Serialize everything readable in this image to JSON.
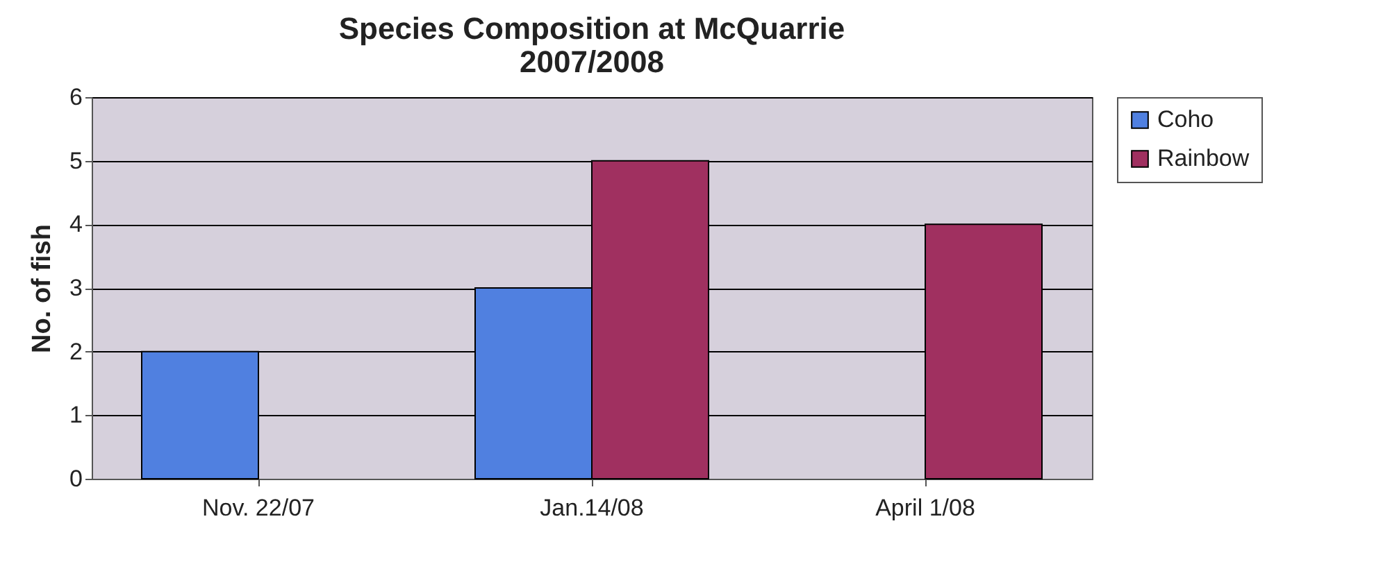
{
  "chart_data": {
    "type": "bar",
    "title": [
      "Species Composition at McQuarrie",
      "2007/2008"
    ],
    "ylabel": "No. of fish",
    "categories": [
      "Nov. 22/07",
      "Jan.14/08",
      "April 1/08"
    ],
    "series": [
      {
        "name": "Coho",
        "color": "#5080e0",
        "values": [
          2,
          3,
          0
        ]
      },
      {
        "name": "Rainbow",
        "color": "#a03060",
        "values": [
          0,
          5,
          4
        ]
      }
    ],
    "ylim": [
      0,
      6
    ],
    "yticks": [
      0,
      1,
      2,
      3,
      4,
      5,
      6
    ],
    "grid": "y",
    "legend": "right"
  }
}
